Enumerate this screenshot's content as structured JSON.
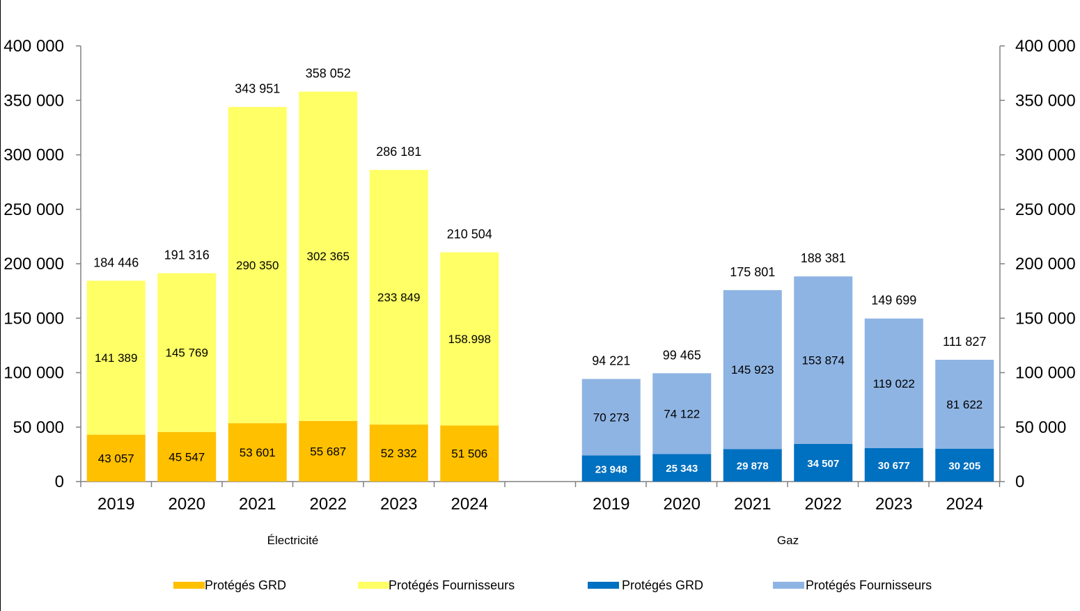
{
  "chart_data": {
    "type": "bar",
    "stacked": true,
    "ylim": [
      0,
      400000
    ],
    "yticks": [
      "0",
      "50 000",
      "100 000",
      "150 000",
      "200 000",
      "250 000",
      "300 000",
      "350 000",
      "400 000"
    ],
    "grid": false,
    "legend": "bottom",
    "groups": [
      {
        "name": "Électricité",
        "categories": [
          "2019",
          "2020",
          "2021",
          "2022",
          "2023",
          "2024"
        ],
        "series": [
          {
            "name": "Protégés GRD",
            "color": "#FFC000",
            "values": [
              43057,
              45547,
              53601,
              55687,
              52332,
              51506
            ],
            "labels": [
              "43 057",
              "45 547",
              "53 601",
              "55 687",
              "52 332",
              "51 506"
            ]
          },
          {
            "name": "Protégés Fournisseurs",
            "color": "#FFFF66",
            "values": [
              141389,
              145769,
              290350,
              302365,
              233849,
              158998
            ],
            "labels": [
              "141 389",
              "145 769",
              "290 350",
              "302 365",
              "233 849",
              "158.998"
            ]
          }
        ],
        "totals": [
          "184 446",
          "191 316",
          "343 951",
          "358 052",
          "286 181",
          "210 504"
        ]
      },
      {
        "name": "Gaz",
        "categories": [
          "2019",
          "2020",
          "2021",
          "2022",
          "2023",
          "2024"
        ],
        "series": [
          {
            "name": "Protégés GRD",
            "color": "#0070C0",
            "values": [
              23948,
              25343,
              29878,
              34507,
              30677,
              30205
            ],
            "labels": [
              "23 948",
              "25 343",
              "29 878",
              "34 507",
              "30 677",
              "30 205"
            ]
          },
          {
            "name": "Protégés Fournisseurs",
            "color": "#8EB4E3",
            "values": [
              70273,
              74122,
              145923,
              153874,
              119022,
              81622
            ],
            "labels": [
              "70 273",
              "74 122",
              "145 923",
              "153 874",
              "119 022",
              "81 622"
            ]
          }
        ],
        "totals": [
          "94 221",
          "99 465",
          "175 801",
          "188 381",
          "149 699",
          "111 827"
        ]
      }
    ],
    "legend_entries": [
      {
        "label": "Protégés GRD",
        "color": "#FFC000"
      },
      {
        "label": "Protégés Fournisseurs",
        "color": "#FFFF66"
      },
      {
        "label": "Protégés GRD",
        "color": "#0070C0"
      },
      {
        "label": "Protégés Fournisseurs",
        "color": "#8EB4E3"
      }
    ]
  }
}
